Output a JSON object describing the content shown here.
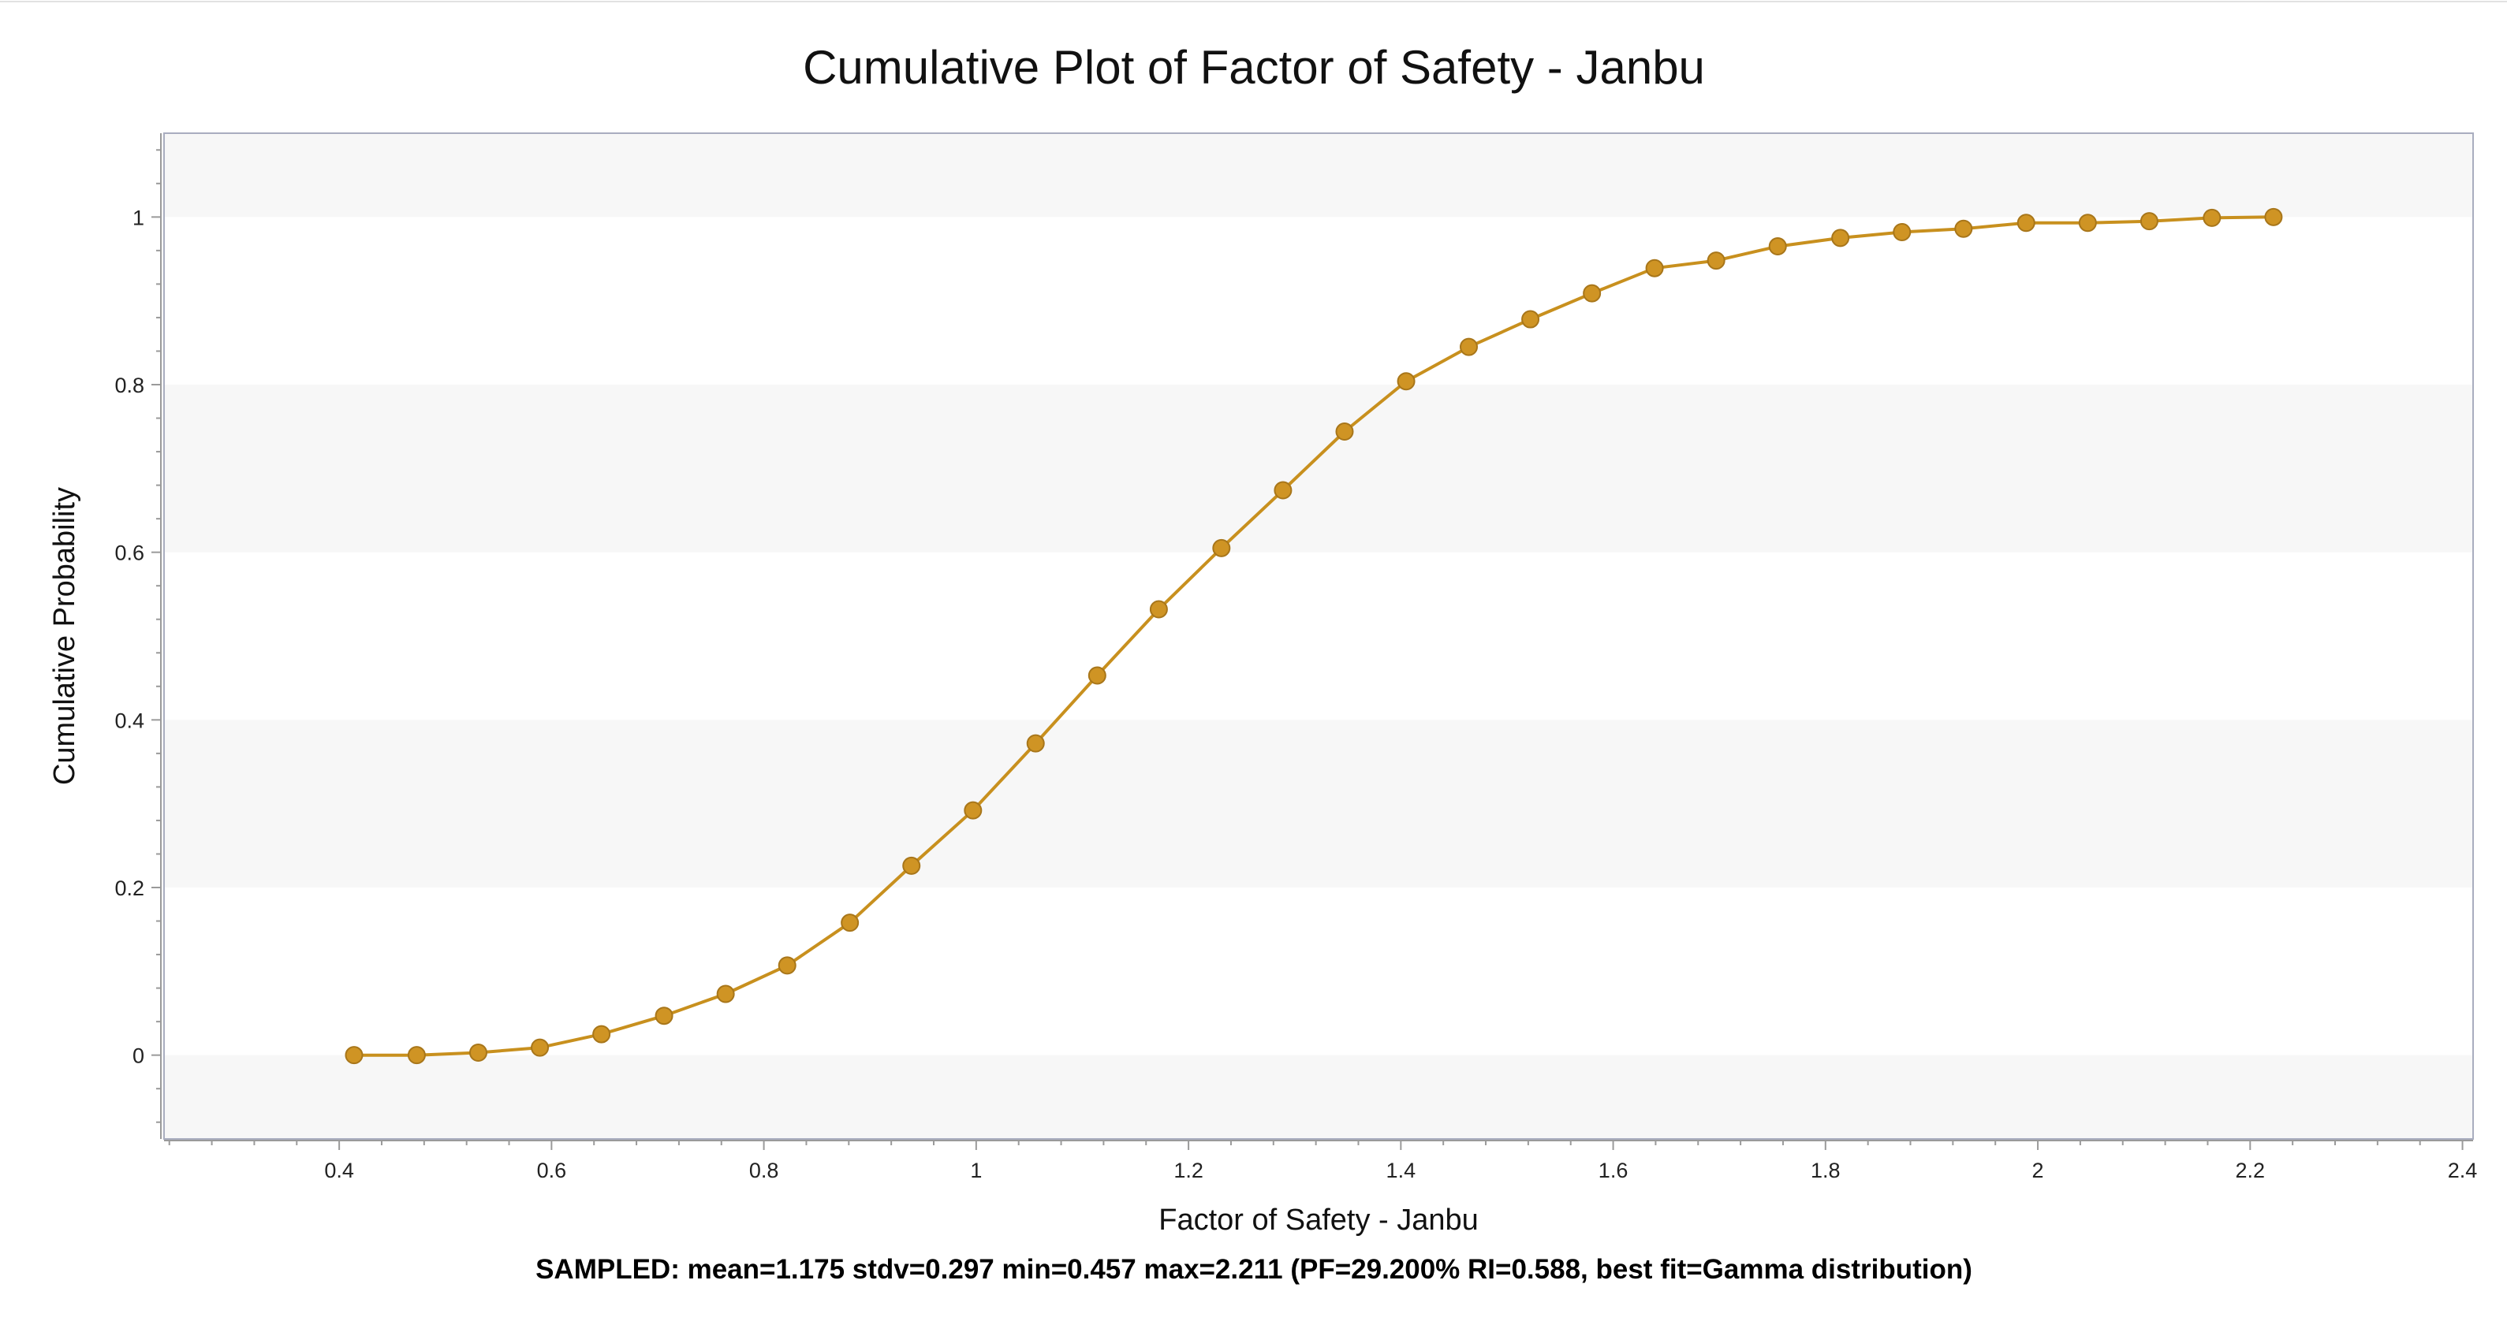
{
  "chart_data": {
    "type": "line",
    "title": "Cumulative Plot of Factor of Safety - Janbu",
    "xlabel": "Factor of Safety - Janbu",
    "ylabel": "Cumulative Probability",
    "summary": "SAMPLED: mean=1.175 stdv=0.297 min=0.457 max=2.211  (PF=29.200% RI=0.588, best fit=Gamma distribution)",
    "xlim": [
      0.235,
      2.41
    ],
    "ylim": [
      -0.1,
      1.1
    ],
    "x_ticks": [
      0.4,
      0.6,
      0.8,
      1,
      1.2,
      1.4,
      1.6,
      1.8,
      2,
      2.2,
      2.4
    ],
    "x_tick_labels": [
      "0.4",
      "0.6",
      "0.8",
      "1",
      "1.2",
      "1.4",
      "1.6",
      "1.8",
      "2",
      "2.2",
      "2.4"
    ],
    "y_ticks": [
      0,
      0.2,
      0.4,
      0.6,
      0.8,
      1
    ],
    "y_tick_labels": [
      "0",
      "0.2",
      "0.4",
      "0.6",
      "0.8",
      "1"
    ],
    "legend": "none",
    "grid": "alternating horizontal bands",
    "colors": {
      "line": "#c8901e",
      "marker": "#cf9424",
      "marker_edge": "#a8761a",
      "band": "#f7f7f7",
      "frame": "#a9adbf"
    },
    "series": [
      {
        "x": [
          0.414,
          0.473,
          0.531,
          0.589,
          0.647,
          0.706,
          0.764,
          0.822,
          0.881,
          0.939,
          0.997,
          1.056,
          1.114,
          1.172,
          1.231,
          1.289,
          1.347,
          1.405,
          1.464,
          1.522,
          1.58,
          1.639,
          1.697,
          1.755,
          1.814,
          1.872,
          1.93,
          1.989,
          2.047,
          2.105,
          2.164,
          2.222
        ],
        "y": [
          0.0,
          0.0,
          0.003,
          0.009,
          0.025,
          0.047,
          0.073,
          0.107,
          0.158,
          0.226,
          0.292,
          0.372,
          0.453,
          0.532,
          0.605,
          0.674,
          0.744,
          0.804,
          0.845,
          0.878,
          0.909,
          0.939,
          0.948,
          0.965,
          0.975,
          0.982,
          0.986,
          0.993,
          0.993,
          0.995,
          0.999,
          1.0
        ]
      }
    ]
  }
}
